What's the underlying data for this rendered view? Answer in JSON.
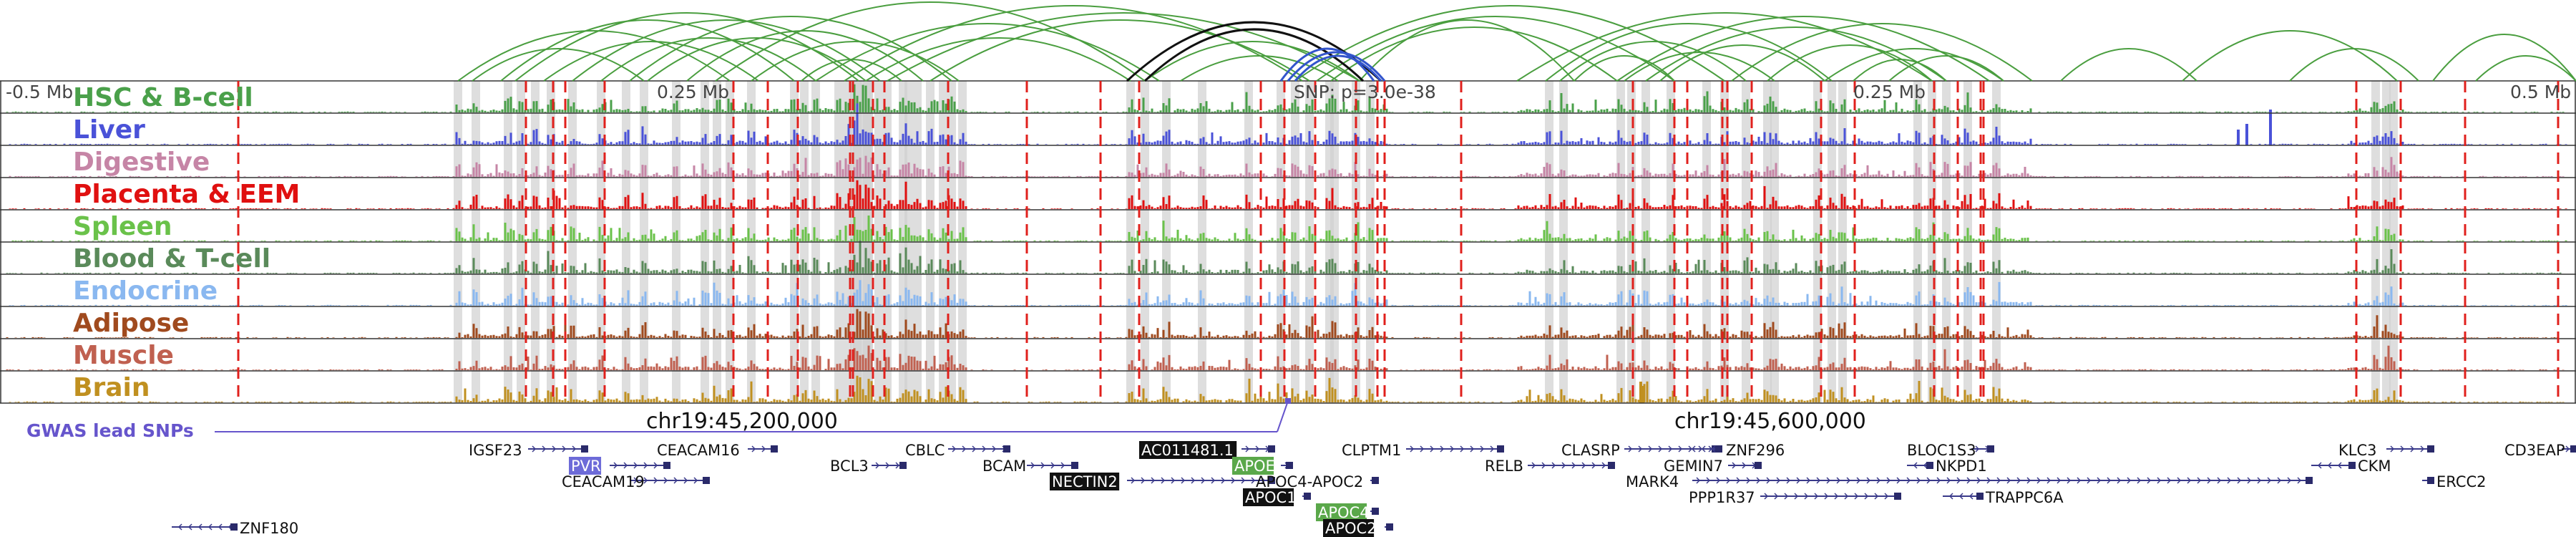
{
  "coords": {
    "left_offset": "-0.5 Mb",
    "left_mid_offset": "0.25 Mb",
    "snp_label": "SNP: p=3.0e-38",
    "right_mid_offset": "0.25 Mb",
    "right_offset": "0.5 Mb"
  },
  "positions": {
    "left": "chr19:45,200,000",
    "right": "chr19:45,600,000"
  },
  "gwas_label": "GWAS lead SNPs",
  "colors": {
    "loop_green": "#4a9e3f",
    "loop_black": "#111111",
    "loop_blue": "#3355cc",
    "red_dash": "#e0201c",
    "highlight_grey": "#d0d0d0",
    "gwas": "#6655cc"
  },
  "tracks": [
    {
      "name": "HSC & B-cell",
      "color": "#4aa04a"
    },
    {
      "name": "Liver",
      "color": "#4a52d8"
    },
    {
      "name": "Digestive",
      "color": "#c685a6"
    },
    {
      "name": "Placenta & EEM",
      "color": "#e01010"
    },
    {
      "name": "Spleen",
      "color": "#6ac24a"
    },
    {
      "name": "Blood & T-cell",
      "color": "#5a8a5a"
    },
    {
      "name": "Endocrine",
      "color": "#8ab8f0"
    },
    {
      "name": "Adipose",
      "color": "#a04a1e"
    },
    {
      "name": "Muscle",
      "color": "#c06050"
    },
    {
      "name": "Brain",
      "color": "#c09020"
    }
  ],
  "genes": [
    {
      "name": "IGSF23",
      "box": "",
      "dir": "right"
    },
    {
      "name": "PVR",
      "box": "blue",
      "dir": "right"
    },
    {
      "name": "CEACAM19",
      "box": "",
      "dir": "right"
    },
    {
      "name": "CEACAM16",
      "box": "",
      "dir": "right"
    },
    {
      "name": "BCL3",
      "box": "",
      "dir": "right"
    },
    {
      "name": "CBLC",
      "box": "",
      "dir": "right"
    },
    {
      "name": "BCAM",
      "box": "",
      "dir": "right"
    },
    {
      "name": "AC011481.1",
      "box": "black",
      "dir": "right"
    },
    {
      "name": "NECTIN2",
      "box": "black",
      "dir": "right"
    },
    {
      "name": "APOE",
      "box": "green",
      "dir": "right"
    },
    {
      "name": "APOC1",
      "box": "black",
      "dir": "right"
    },
    {
      "name": "APOC4-APOC2",
      "box": "",
      "dir": "right"
    },
    {
      "name": "APOC4",
      "box": "green",
      "dir": "right"
    },
    {
      "name": "APOC2",
      "box": "black",
      "dir": "right"
    },
    {
      "name": "CLPTM1",
      "box": "",
      "dir": "right"
    },
    {
      "name": "RELB",
      "box": "",
      "dir": "right"
    },
    {
      "name": "CLASRP",
      "box": "",
      "dir": "right"
    },
    {
      "name": "ZNF296",
      "box": "",
      "dir": "left"
    },
    {
      "name": "GEMIN7",
      "box": "",
      "dir": "right"
    },
    {
      "name": "MARK4",
      "box": "",
      "dir": "right"
    },
    {
      "name": "PPP1R37",
      "box": "",
      "dir": "right"
    },
    {
      "name": "BLOC1S3",
      "box": "",
      "dir": "right"
    },
    {
      "name": "NKPD1",
      "box": "",
      "dir": "left"
    },
    {
      "name": "TRAPPC6A",
      "box": "",
      "dir": "left"
    },
    {
      "name": "KLC3",
      "box": "",
      "dir": "right"
    },
    {
      "name": "CKM",
      "box": "",
      "dir": "left"
    },
    {
      "name": "ERCC2",
      "box": "",
      "dir": "left"
    },
    {
      "name": "CD3EAP",
      "box": "",
      "dir": "right"
    },
    {
      "name": "ZNF180",
      "box": "",
      "dir": "left"
    }
  ]
}
